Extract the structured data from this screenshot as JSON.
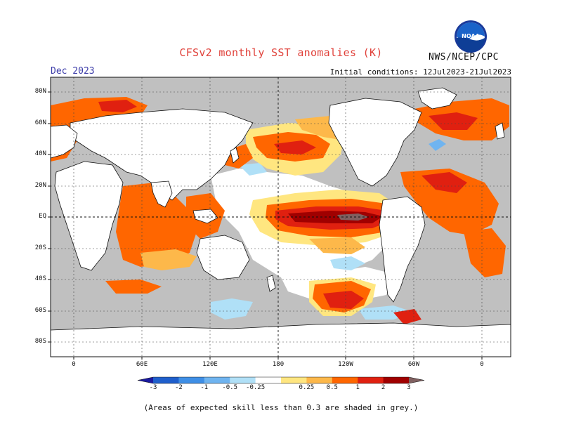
{
  "header": {
    "title": "CFSv2 monthly SST anomalies (K)",
    "forecast_month": "Dec 2023",
    "initial_conditions": "Initial conditions: 12Jul2023-21Jul2023",
    "agency": "NWS/NCEP/CPC",
    "logo_text": "NOAA"
  },
  "map": {
    "lat_labels": [
      "80N",
      "60N",
      "40N",
      "20N",
      "EQ",
      "20S",
      "40S",
      "60S",
      "80S"
    ],
    "lon_labels": [
      "0",
      "60E",
      "120E",
      "180",
      "120W",
      "60W",
      "0"
    ],
    "land_color": "#ffffff",
    "low_skill_color": "#c0c0c0",
    "ocean_near_zero_color": "#ffffff"
  },
  "colorbar": {
    "labels": [
      "-3",
      "-2",
      "-1",
      "-0.5",
      "-0.25",
      "0.25",
      "0.5",
      "1",
      "2",
      "3"
    ],
    "colors": [
      "#1a1aa0",
      "#1f5fcc",
      "#3f8fe6",
      "#6fb4f0",
      "#b0e0f7",
      "#ffffff",
      "#ffe680",
      "#fdb84a",
      "#ff6600",
      "#e02010",
      "#a00000",
      "#806060"
    ]
  },
  "footnote": "(Areas of expected skill less than 0.3 are shaded in grey.)"
}
